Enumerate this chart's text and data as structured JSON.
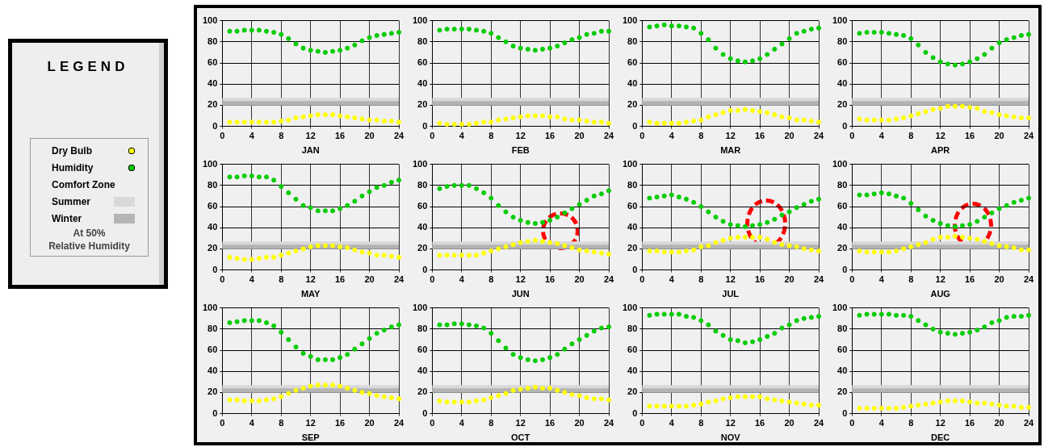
{
  "chart_data": [
    {
      "type": "other",
      "title": "LEGEND",
      "annotations": [
        "Dry Bulb",
        "Humidity",
        "Comfort Zone",
        "Summer",
        "Winter",
        "At 50%",
        "Relative Humidity"
      ]
    },
    {
      "type": "scatter",
      "xlabel": "JAN",
      "x": [
        1,
        2,
        3,
        4,
        5,
        6,
        7,
        8,
        9,
        10,
        11,
        12,
        13,
        14,
        15,
        16,
        17,
        18,
        19,
        20,
        21,
        22,
        23,
        24
      ],
      "xlim": [
        0,
        24
      ],
      "xticks": [
        0,
        4,
        8,
        12,
        16,
        20,
        24
      ],
      "ylim": [
        0,
        100
      ],
      "yticks": [
        0,
        20,
        40,
        60,
        80,
        100
      ],
      "grid": true,
      "marker": "circle",
      "legend": false,
      "bands": [
        {
          "axis": "y",
          "from": 20,
          "to": 27,
          "color": "#d9d9d9"
        },
        {
          "axis": "y",
          "from": 20,
          "to": 24,
          "color": "#b4b4b4"
        }
      ],
      "series": [
        {
          "color": "#ffff00",
          "values": [
            4,
            4,
            4,
            4,
            4,
            4,
            4,
            5,
            6,
            8,
            9,
            10,
            11,
            11,
            11,
            10,
            9,
            8,
            7,
            6,
            6,
            5,
            5,
            4
          ]
        },
        {
          "color": "#00cc00",
          "values": [
            90,
            90,
            91,
            91,
            91,
            90,
            89,
            87,
            83,
            78,
            74,
            72,
            71,
            70,
            71,
            72,
            74,
            77,
            81,
            84,
            86,
            87,
            88,
            89
          ]
        }
      ]
    },
    {
      "type": "scatter",
      "xlabel": "FEB",
      "x": [
        1,
        2,
        3,
        4,
        5,
        6,
        7,
        8,
        9,
        10,
        11,
        12,
        13,
        14,
        15,
        16,
        17,
        18,
        19,
        20,
        21,
        22,
        23,
        24
      ],
      "xlim": [
        0,
        24
      ],
      "xticks": [
        0,
        4,
        8,
        12,
        16,
        20,
        24
      ],
      "ylim": [
        0,
        100
      ],
      "yticks": [
        0,
        20,
        40,
        60,
        80,
        100
      ],
      "grid": true,
      "marker": "circle",
      "legend": false,
      "bands": [
        {
          "axis": "y",
          "from": 20,
          "to": 27,
          "color": "#d9d9d9"
        },
        {
          "axis": "y",
          "from": 20,
          "to": 24,
          "color": "#b4b4b4"
        }
      ],
      "series": [
        {
          "color": "#ffff00",
          "values": [
            3,
            2,
            2,
            2,
            2,
            3,
            4,
            4,
            6,
            7,
            8,
            9,
            10,
            10,
            10,
            9,
            9,
            7,
            6,
            6,
            5,
            4,
            4,
            3
          ]
        },
        {
          "color": "#00cc00",
          "values": [
            91,
            92,
            92,
            92,
            92,
            91,
            90,
            88,
            84,
            80,
            76,
            74,
            73,
            72,
            73,
            74,
            76,
            79,
            82,
            84,
            87,
            88,
            90,
            90
          ]
        }
      ]
    },
    {
      "type": "scatter",
      "xlabel": "MAR",
      "x": [
        1,
        2,
        3,
        4,
        5,
        6,
        7,
        8,
        9,
        10,
        11,
        12,
        13,
        14,
        15,
        16,
        17,
        18,
        19,
        20,
        21,
        22,
        23,
        24
      ],
      "xlim": [
        0,
        24
      ],
      "xticks": [
        0,
        4,
        8,
        12,
        16,
        20,
        24
      ],
      "ylim": [
        0,
        100
      ],
      "yticks": [
        0,
        20,
        40,
        60,
        80,
        100
      ],
      "grid": true,
      "marker": "circle",
      "legend": false,
      "bands": [
        {
          "axis": "y",
          "from": 20,
          "to": 27,
          "color": "#d9d9d9"
        },
        {
          "axis": "y",
          "from": 20,
          "to": 24,
          "color": "#b4b4b4"
        }
      ],
      "series": [
        {
          "color": "#ffff00",
          "values": [
            4,
            3,
            3,
            3,
            3,
            4,
            5,
            6,
            9,
            11,
            13,
            15,
            15,
            16,
            15,
            14,
            13,
            11,
            9,
            8,
            6,
            6,
            5,
            4
          ]
        },
        {
          "color": "#00cc00",
          "values": [
            94,
            95,
            96,
            95,
            95,
            94,
            93,
            88,
            82,
            74,
            68,
            64,
            62,
            61,
            62,
            64,
            68,
            73,
            78,
            83,
            88,
            90,
            92,
            93
          ]
        }
      ]
    },
    {
      "type": "scatter",
      "xlabel": "APR",
      "x": [
        1,
        2,
        3,
        4,
        5,
        6,
        7,
        8,
        9,
        10,
        11,
        12,
        13,
        14,
        15,
        16,
        17,
        18,
        19,
        20,
        21,
        22,
        23,
        24
      ],
      "xlim": [
        0,
        24
      ],
      "xticks": [
        0,
        4,
        8,
        12,
        16,
        20,
        24
      ],
      "ylim": [
        0,
        100
      ],
      "yticks": [
        0,
        20,
        40,
        60,
        80,
        100
      ],
      "grid": true,
      "marker": "circle",
      "legend": false,
      "bands": [
        {
          "axis": "y",
          "from": 20,
          "to": 27,
          "color": "#d9d9d9"
        },
        {
          "axis": "y",
          "from": 20,
          "to": 24,
          "color": "#b4b4b4"
        }
      ],
      "series": [
        {
          "color": "#ffff00",
          "values": [
            7,
            6,
            6,
            6,
            6,
            7,
            8,
            10,
            12,
            14,
            16,
            17,
            19,
            19,
            19,
            18,
            17,
            14,
            13,
            11,
            10,
            9,
            8,
            8
          ]
        },
        {
          "color": "#00cc00",
          "values": [
            88,
            89,
            89,
            89,
            88,
            87,
            86,
            83,
            77,
            70,
            65,
            61,
            59,
            58,
            59,
            61,
            64,
            68,
            74,
            79,
            82,
            84,
            86,
            87
          ]
        }
      ]
    },
    {
      "type": "scatter",
      "xlabel": "MAY",
      "x": [
        1,
        2,
        3,
        4,
        5,
        6,
        7,
        8,
        9,
        10,
        11,
        12,
        13,
        14,
        15,
        16,
        17,
        18,
        19,
        20,
        21,
        22,
        23,
        24
      ],
      "xlim": [
        0,
        24
      ],
      "xticks": [
        0,
        4,
        8,
        12,
        16,
        20,
        24
      ],
      "ylim": [
        0,
        100
      ],
      "yticks": [
        0,
        20,
        40,
        60,
        80,
        100
      ],
      "grid": true,
      "marker": "circle",
      "legend": false,
      "bands": [
        {
          "axis": "y",
          "from": 20,
          "to": 27,
          "color": "#d9d9d9"
        },
        {
          "axis": "y",
          "from": 20,
          "to": 24,
          "color": "#b4b4b4"
        }
      ],
      "series": [
        {
          "color": "#ffff00",
          "values": [
            12,
            11,
            10,
            10,
            11,
            12,
            12,
            14,
            16,
            18,
            20,
            22,
            23,
            23,
            23,
            22,
            21,
            19,
            17,
            16,
            14,
            14,
            13,
            12
          ]
        },
        {
          "color": "#00cc00",
          "values": [
            88,
            88,
            89,
            89,
            88,
            88,
            85,
            79,
            73,
            67,
            61,
            59,
            56,
            56,
            56,
            58,
            61,
            65,
            70,
            74,
            78,
            80,
            83,
            85
          ]
        }
      ]
    },
    {
      "type": "scatter",
      "xlabel": "JUN",
      "x": [
        1,
        2,
        3,
        4,
        5,
        6,
        7,
        8,
        9,
        10,
        11,
        12,
        13,
        14,
        15,
        16,
        17,
        18,
        19,
        20,
        21,
        22,
        23,
        24
      ],
      "xlim": [
        0,
        24
      ],
      "xticks": [
        0,
        4,
        8,
        12,
        16,
        20,
        24
      ],
      "ylim": [
        0,
        100
      ],
      "yticks": [
        0,
        20,
        40,
        60,
        80,
        100
      ],
      "grid": true,
      "marker": "circle",
      "legend": false,
      "bands": [
        {
          "axis": "y",
          "from": 20,
          "to": 27,
          "color": "#d9d9d9"
        },
        {
          "axis": "y",
          "from": 20,
          "to": 24,
          "color": "#b4b4b4"
        }
      ],
      "series": [
        {
          "color": "#ffff00",
          "values": [
            14,
            14,
            14,
            14,
            14,
            14,
            16,
            18,
            20,
            22,
            24,
            26,
            27,
            28,
            27,
            26,
            25,
            23,
            21,
            19,
            18,
            17,
            16,
            15
          ]
        },
        {
          "color": "#00cc00",
          "values": [
            77,
            79,
            80,
            80,
            80,
            77,
            73,
            68,
            61,
            55,
            50,
            47,
            45,
            44,
            45,
            47,
            50,
            54,
            58,
            62,
            66,
            70,
            72,
            75
          ]
        }
      ]
    },
    {
      "type": "scatter",
      "xlabel": "JUL",
      "x": [
        1,
        2,
        3,
        4,
        5,
        6,
        7,
        8,
        9,
        10,
        11,
        12,
        13,
        14,
        15,
        16,
        17,
        18,
        19,
        20,
        21,
        22,
        23,
        24
      ],
      "xlim": [
        0,
        24
      ],
      "xticks": [
        0,
        4,
        8,
        12,
        16,
        20,
        24
      ],
      "ylim": [
        0,
        100
      ],
      "yticks": [
        0,
        20,
        40,
        60,
        80,
        100
      ],
      "grid": true,
      "marker": "circle",
      "legend": false,
      "bands": [
        {
          "axis": "y",
          "from": 20,
          "to": 27,
          "color": "#d9d9d9"
        },
        {
          "axis": "y",
          "from": 20,
          "to": 24,
          "color": "#b4b4b4"
        }
      ],
      "series": [
        {
          "color": "#ffff00",
          "values": [
            18,
            18,
            17,
            17,
            17,
            18,
            19,
            22,
            23,
            26,
            28,
            30,
            31,
            31,
            31,
            31,
            29,
            26,
            24,
            23,
            22,
            20,
            19,
            18
          ]
        },
        {
          "color": "#00cc00",
          "values": [
            68,
            69,
            70,
            71,
            69,
            67,
            64,
            60,
            55,
            50,
            46,
            43,
            42,
            41,
            42,
            43,
            45,
            48,
            52,
            55,
            59,
            62,
            65,
            67
          ]
        }
      ]
    },
    {
      "type": "scatter",
      "xlabel": "AUG",
      "x": [
        1,
        2,
        3,
        4,
        5,
        6,
        7,
        8,
        9,
        10,
        11,
        12,
        13,
        14,
        15,
        16,
        17,
        18,
        19,
        20,
        21,
        22,
        23,
        24
      ],
      "xlim": [
        0,
        24
      ],
      "xticks": [
        0,
        4,
        8,
        12,
        16,
        20,
        24
      ],
      "ylim": [
        0,
        100
      ],
      "yticks": [
        0,
        20,
        40,
        60,
        80,
        100
      ],
      "grid": true,
      "marker": "circle",
      "legend": false,
      "bands": [
        {
          "axis": "y",
          "from": 20,
          "to": 27,
          "color": "#d9d9d9"
        },
        {
          "axis": "y",
          "from": 20,
          "to": 24,
          "color": "#b4b4b4"
        }
      ],
      "series": [
        {
          "color": "#ffff00",
          "values": [
            18,
            17,
            17,
            17,
            17,
            18,
            20,
            22,
            24,
            26,
            29,
            31,
            31,
            32,
            31,
            30,
            29,
            27,
            25,
            23,
            22,
            21,
            19,
            19
          ]
        },
        {
          "color": "#00cc00",
          "values": [
            71,
            71,
            72,
            73,
            72,
            70,
            68,
            63,
            57,
            51,
            47,
            44,
            42,
            41,
            42,
            43,
            46,
            50,
            54,
            58,
            61,
            64,
            66,
            68
          ]
        }
      ]
    },
    {
      "type": "scatter",
      "xlabel": "SEP",
      "x": [
        1,
        2,
        3,
        4,
        5,
        6,
        7,
        8,
        9,
        10,
        11,
        12,
        13,
        14,
        15,
        16,
        17,
        18,
        19,
        20,
        21,
        22,
        23,
        24
      ],
      "xlim": [
        0,
        24
      ],
      "xticks": [
        0,
        4,
        8,
        12,
        16,
        20,
        24
      ],
      "ylim": [
        0,
        100
      ],
      "yticks": [
        0,
        20,
        40,
        60,
        80,
        100
      ],
      "grid": true,
      "marker": "circle",
      "legend": false,
      "bands": [
        {
          "axis": "y",
          "from": 20,
          "to": 27,
          "color": "#d9d9d9"
        },
        {
          "axis": "y",
          "from": 20,
          "to": 24,
          "color": "#b4b4b4"
        }
      ],
      "series": [
        {
          "color": "#ffff00",
          "values": [
            13,
            13,
            12,
            12,
            12,
            13,
            14,
            16,
            19,
            22,
            24,
            26,
            27,
            27,
            27,
            26,
            24,
            22,
            20,
            19,
            17,
            16,
            15,
            14
          ]
        },
        {
          "color": "#00cc00",
          "values": [
            86,
            87,
            88,
            88,
            88,
            86,
            83,
            77,
            70,
            63,
            57,
            54,
            51,
            51,
            51,
            53,
            56,
            61,
            66,
            71,
            76,
            79,
            82,
            84
          ]
        }
      ]
    },
    {
      "type": "scatter",
      "xlabel": "OCT",
      "x": [
        1,
        2,
        3,
        4,
        5,
        6,
        7,
        8,
        9,
        10,
        11,
        12,
        13,
        14,
        15,
        16,
        17,
        18,
        19,
        20,
        21,
        22,
        23,
        24
      ],
      "xlim": [
        0,
        24
      ],
      "xticks": [
        0,
        4,
        8,
        12,
        16,
        20,
        24
      ],
      "ylim": [
        0,
        100
      ],
      "yticks": [
        0,
        20,
        40,
        60,
        80,
        100
      ],
      "grid": true,
      "marker": "circle",
      "legend": false,
      "bands": [
        {
          "axis": "y",
          "from": 20,
          "to": 27,
          "color": "#d9d9d9"
        },
        {
          "axis": "y",
          "from": 20,
          "to": 24,
          "color": "#b4b4b4"
        }
      ],
      "series": [
        {
          "color": "#ffff00",
          "values": [
            12,
            11,
            11,
            11,
            11,
            12,
            13,
            15,
            17,
            19,
            22,
            23,
            24,
            25,
            24,
            24,
            22,
            20,
            18,
            17,
            15,
            14,
            14,
            13
          ]
        },
        {
          "color": "#00cc00",
          "values": [
            84,
            84,
            85,
            85,
            84,
            83,
            81,
            76,
            69,
            62,
            56,
            53,
            51,
            50,
            51,
            53,
            56,
            61,
            66,
            70,
            74,
            78,
            81,
            82
          ]
        }
      ]
    },
    {
      "type": "scatter",
      "xlabel": "NOV",
      "x": [
        1,
        2,
        3,
        4,
        5,
        6,
        7,
        8,
        9,
        10,
        11,
        12,
        13,
        14,
        15,
        16,
        17,
        18,
        19,
        20,
        21,
        22,
        23,
        24
      ],
      "xlim": [
        0,
        24
      ],
      "xticks": [
        0,
        4,
        8,
        12,
        16,
        20,
        24
      ],
      "ylim": [
        0,
        100
      ],
      "yticks": [
        0,
        20,
        40,
        60,
        80,
        100
      ],
      "grid": true,
      "marker": "circle",
      "legend": false,
      "bands": [
        {
          "axis": "y",
          "from": 20,
          "to": 27,
          "color": "#d9d9d9"
        },
        {
          "axis": "y",
          "from": 20,
          "to": 24,
          "color": "#b4b4b4"
        }
      ],
      "series": [
        {
          "color": "#ffff00",
          "values": [
            7,
            7,
            7,
            7,
            7,
            7,
            8,
            9,
            11,
            12,
            14,
            15,
            16,
            16,
            16,
            16,
            14,
            13,
            12,
            11,
            10,
            9,
            8,
            8
          ]
        },
        {
          "color": "#00cc00",
          "values": [
            93,
            94,
            94,
            94,
            94,
            92,
            91,
            88,
            84,
            78,
            74,
            70,
            69,
            67,
            68,
            70,
            73,
            76,
            81,
            84,
            88,
            90,
            91,
            92
          ]
        }
      ]
    },
    {
      "type": "scatter",
      "xlabel": "DEC",
      "x": [
        1,
        2,
        3,
        4,
        5,
        6,
        7,
        8,
        9,
        10,
        11,
        12,
        13,
        14,
        15,
        16,
        17,
        18,
        19,
        20,
        21,
        22,
        23,
        24
      ],
      "xlim": [
        0,
        24
      ],
      "xticks": [
        0,
        4,
        8,
        12,
        16,
        20,
        24
      ],
      "ylim": [
        0,
        100
      ],
      "yticks": [
        0,
        20,
        40,
        60,
        80,
        100
      ],
      "grid": true,
      "marker": "circle",
      "legend": false,
      "bands": [
        {
          "axis": "y",
          "from": 20,
          "to": 27,
          "color": "#d9d9d9"
        },
        {
          "axis": "y",
          "from": 20,
          "to": 24,
          "color": "#b4b4b4"
        }
      ],
      "series": [
        {
          "color": "#ffff00",
          "values": [
            5,
            5,
            5,
            5,
            5,
            5,
            6,
            7,
            8,
            9,
            10,
            11,
            12,
            12,
            12,
            11,
            10,
            10,
            9,
            8,
            7,
            7,
            6,
            6
          ]
        },
        {
          "color": "#00cc00",
          "values": [
            93,
            94,
            94,
            94,
            94,
            93,
            93,
            92,
            88,
            84,
            80,
            77,
            76,
            75,
            76,
            77,
            79,
            82,
            86,
            88,
            91,
            92,
            92,
            93
          ]
        }
      ]
    }
  ]
}
